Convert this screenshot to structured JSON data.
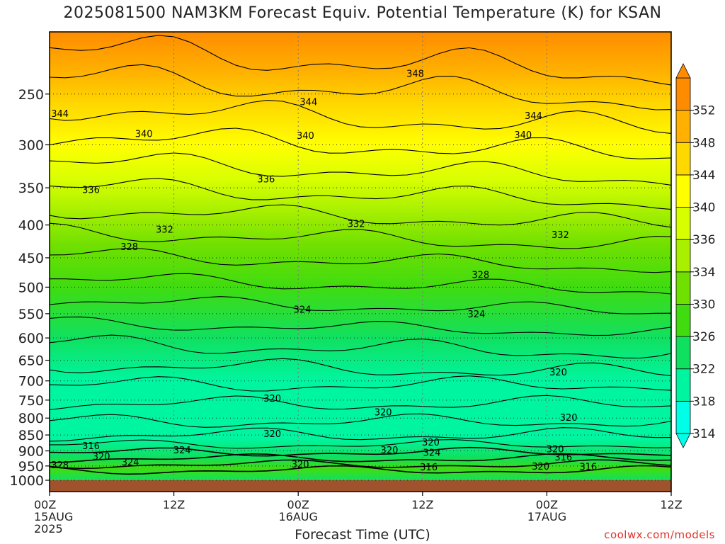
{
  "chart_data": {
    "type": "heatmap",
    "title": "2025081500 NAM3KM Forecast Equiv. Potential Temperature (K) for KSAN",
    "xlabel": "Forecast Time (UTC)",
    "ylabel": "",
    "x_ticks": [
      {
        "hours": 0,
        "labels": [
          "00Z",
          "15AUG",
          "2025"
        ]
      },
      {
        "hours": 12,
        "labels": [
          "12Z"
        ]
      },
      {
        "hours": 24,
        "labels": [
          "00Z",
          "16AUG"
        ]
      },
      {
        "hours": 36,
        "labels": [
          "12Z"
        ]
      },
      {
        "hours": 48,
        "labels": [
          "00Z",
          "17AUG"
        ]
      },
      {
        "hours": 60,
        "labels": [
          "12Z"
        ]
      }
    ],
    "xlim_hours": [
      0,
      60
    ],
    "y_ticks": [
      250,
      300,
      350,
      400,
      450,
      500,
      550,
      600,
      650,
      700,
      750,
      800,
      850,
      900,
      950,
      1000
    ],
    "ylim": [
      200,
      1000
    ],
    "y_log_scale": true,
    "grid": true,
    "ground_color": "#a0522d",
    "colorbar": {
      "levels": [
        314,
        318,
        322,
        326,
        330,
        334,
        336,
        340,
        344,
        348,
        352
      ],
      "colors": [
        "#00ffe6",
        "#00f5a0",
        "#10e060",
        "#40dc10",
        "#70e000",
        "#a8f000",
        "#d8ff00",
        "#ffff00",
        "#ffd800",
        "#ffb000",
        "#ff8c00"
      ]
    },
    "contour_labels": [
      {
        "text": "348",
        "h": 35.3,
        "p": 232
      },
      {
        "text": "344",
        "h": 1.0,
        "p": 268
      },
      {
        "text": "344",
        "h": 25.0,
        "p": 257
      },
      {
        "text": "344",
        "h": 46.7,
        "p": 270
      },
      {
        "text": "340",
        "h": 9.1,
        "p": 288
      },
      {
        "text": "340",
        "h": 24.7,
        "p": 290
      },
      {
        "text": "340",
        "h": 45.7,
        "p": 289
      },
      {
        "text": "336",
        "h": 4.0,
        "p": 352
      },
      {
        "text": "336",
        "h": 20.9,
        "p": 339
      },
      {
        "text": "332",
        "h": 11.1,
        "p": 406
      },
      {
        "text": "332",
        "h": 29.6,
        "p": 398
      },
      {
        "text": "332",
        "h": 49.3,
        "p": 414
      },
      {
        "text": "328",
        "h": 7.7,
        "p": 432
      },
      {
        "text": "328",
        "h": 41.6,
        "p": 478
      },
      {
        "text": "324",
        "h": 24.4,
        "p": 541
      },
      {
        "text": "324",
        "h": 41.2,
        "p": 550
      },
      {
        "text": "320",
        "h": 49.1,
        "p": 678
      },
      {
        "text": "320",
        "h": 21.5,
        "p": 745
      },
      {
        "text": "320",
        "h": 32.2,
        "p": 782
      },
      {
        "text": "320",
        "h": 50.1,
        "p": 797
      },
      {
        "text": "320",
        "h": 21.5,
        "p": 846
      },
      {
        "text": "320",
        "h": 36.8,
        "p": 872
      },
      {
        "text": "320",
        "h": 32.8,
        "p": 896
      },
      {
        "text": "320",
        "h": 24.2,
        "p": 943
      },
      {
        "text": "320",
        "h": 47.4,
        "p": 950
      },
      {
        "text": "320",
        "h": 48.8,
        "p": 893
      },
      {
        "text": "320",
        "h": 5.0,
        "p": 917
      },
      {
        "text": "316",
        "h": 4.0,
        "p": 883
      },
      {
        "text": "316",
        "h": 36.6,
        "p": 953
      },
      {
        "text": "316",
        "h": 49.6,
        "p": 920
      },
      {
        "text": "316",
        "h": 52.0,
        "p": 952
      },
      {
        "text": "324",
        "h": 12.8,
        "p": 896
      },
      {
        "text": "324",
        "h": 7.8,
        "p": 936
      },
      {
        "text": "324",
        "h": 36.9,
        "p": 904
      },
      {
        "text": "328",
        "h": 1.0,
        "p": 945
      }
    ]
  },
  "credit": "coolwx.com/models"
}
